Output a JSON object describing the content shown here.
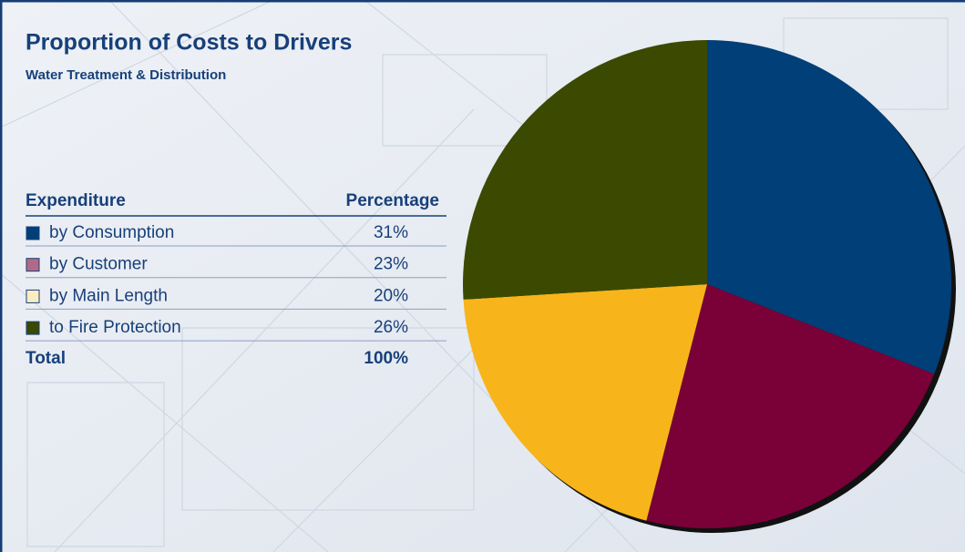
{
  "chart_data": {
    "type": "pie",
    "title": "Proportion of Costs to Drivers",
    "subtitle": "Water Treatment & Distribution",
    "column_headers": [
      "Expenditure",
      "Percentage"
    ],
    "categories": [
      "by Consumption",
      "by Customer",
      "by Main Length",
      "to Fire Protection"
    ],
    "values": [
      31,
      23,
      20,
      26
    ],
    "value_labels": [
      "31%",
      "23%",
      "20%",
      "26%"
    ],
    "colors": [
      "#003f78",
      "#7a0038",
      "#f7b51b",
      "#3b4a00"
    ],
    "swatch_colors": [
      "#003f78",
      "#b06a86",
      "#fbecc2",
      "#3b4a00"
    ],
    "total": {
      "label": "Total",
      "value": 100,
      "value_label": "100%"
    }
  }
}
